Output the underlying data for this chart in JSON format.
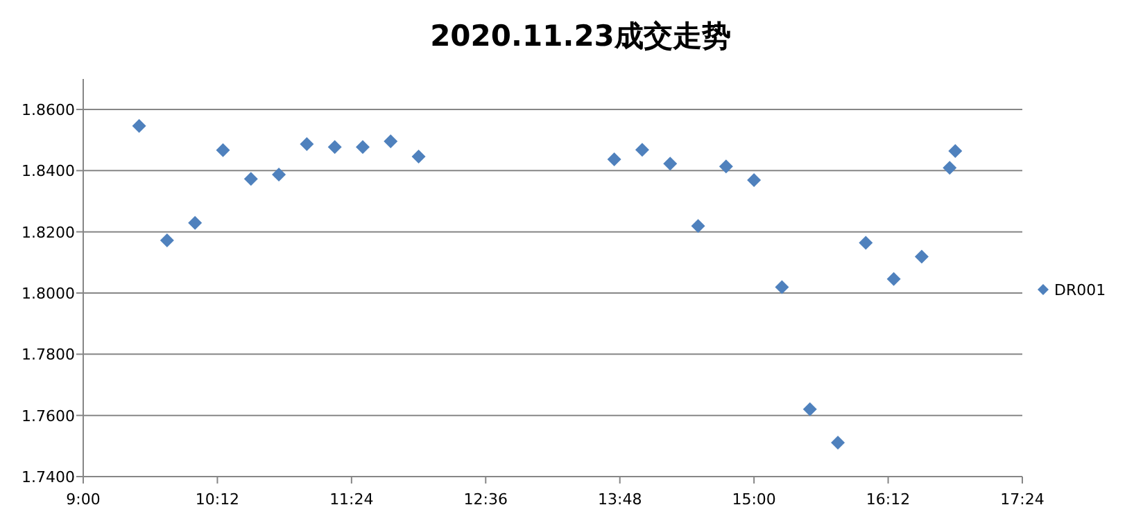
{
  "chart_data": {
    "type": "scatter",
    "title": "2020.11.23成交走势",
    "x": [
      9.5,
      9.75,
      10,
      10.25,
      10.5,
      10.75,
      11,
      11.25,
      11.5,
      11.75,
      12,
      13.75,
      14,
      14.25,
      14.5,
      14.75,
      15,
      15.25,
      15.5,
      15.75,
      16,
      16.25,
      16.5,
      16.75,
      16.8
    ],
    "series": [
      {
        "name": "DR001",
        "color": "#4f81bd",
        "values": [
          1.8546,
          1.8172,
          1.8229,
          1.8467,
          1.8373,
          1.8387,
          1.8487,
          1.8477,
          1.8477,
          1.8496,
          1.8446,
          1.8437,
          1.8468,
          1.8423,
          1.8219,
          1.8414,
          1.8369,
          1.8019,
          1.762,
          1.7511,
          1.8164,
          1.8046,
          1.8119,
          1.8409,
          1.8464
        ]
      }
    ],
    "xlim": [
      9,
      17.4
    ],
    "xticks": [
      {
        "value": 9,
        "label": "9:00"
      },
      {
        "value": 10.2,
        "label": "10:12"
      },
      {
        "value": 11.4,
        "label": "11:24"
      },
      {
        "value": 12.6,
        "label": "12:36"
      },
      {
        "value": 13.8,
        "label": "13:48"
      },
      {
        "value": 15,
        "label": "15:00"
      },
      {
        "value": 16.2,
        "label": "16:12"
      },
      {
        "value": 17.4,
        "label": "17:24"
      }
    ],
    "ylim": [
      1.74,
      1.86
    ],
    "yticks": [
      {
        "value": 1.74,
        "label": "1.7400"
      },
      {
        "value": 1.76,
        "label": "1.7600"
      },
      {
        "value": 1.78,
        "label": "1.7800"
      },
      {
        "value": 1.8,
        "label": "1.8000"
      },
      {
        "value": 1.82,
        "label": "1.8200"
      },
      {
        "value": 1.84,
        "label": "1.8400"
      },
      {
        "value": 1.86,
        "label": "1.8600"
      }
    ],
    "grid": "y",
    "legend": "right",
    "marker": "diamond"
  }
}
